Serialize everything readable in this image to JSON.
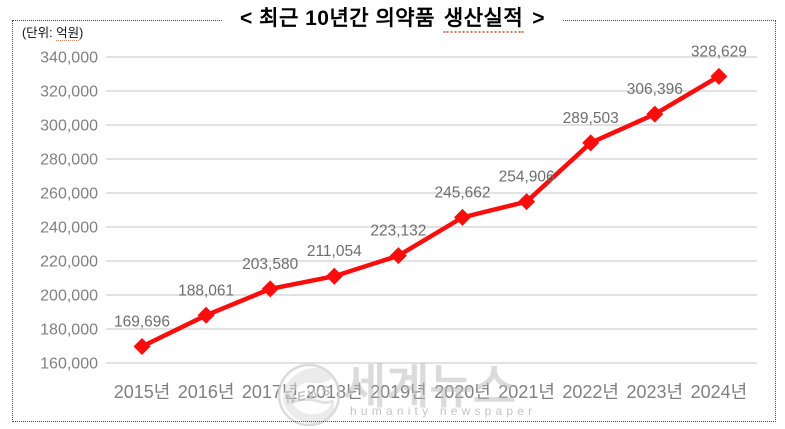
{
  "title": {
    "part1": "< 최근 10년간 의약품",
    "part2": "생산실적",
    "part3": ">"
  },
  "unit": {
    "part1": "(단위:",
    "part2": "억원",
    "part3": ")"
  },
  "watermark": {
    "stamp_text": "NEWS",
    "main_text": "세계뉴스",
    "sub_text": "humanity newspaper"
  },
  "colors": {
    "line": "#f90d0d",
    "grid": "#d9d9d9",
    "axis_text": "#808080",
    "data_label_text": "#6e6e6e",
    "title_text": "#000000",
    "watermark_text": "#bdbdbd"
  },
  "chart_data": {
    "type": "line",
    "title": "< 최근 10년간 의약품 생산실적 >",
    "unit_note": "(단위: 억원)",
    "categories": [
      "2015년",
      "2016년",
      "2017년",
      "2018년",
      "2019년",
      "2020년",
      "2021년",
      "2022년",
      "2023년",
      "2024년"
    ],
    "values": [
      169696,
      188061,
      203580,
      211054,
      223132,
      245662,
      254906,
      289503,
      306396,
      328629
    ],
    "data_labels": [
      "169,696",
      "188,061",
      "203,580",
      "211,054",
      "223,132",
      "245,662",
      "254,906",
      "289,503",
      "306,396",
      "328,629"
    ],
    "ylim": [
      160000,
      340000
    ],
    "ytick_step": 20000,
    "ytick_labels": [
      "160,000",
      "180,000",
      "200,000",
      "220,000",
      "240,000",
      "260,000",
      "280,000",
      "300,000",
      "320,000",
      "340,000"
    ],
    "xlabel": "",
    "ylabel": "",
    "grid": "horizontal",
    "legend": "none",
    "marker": "diamond"
  }
}
